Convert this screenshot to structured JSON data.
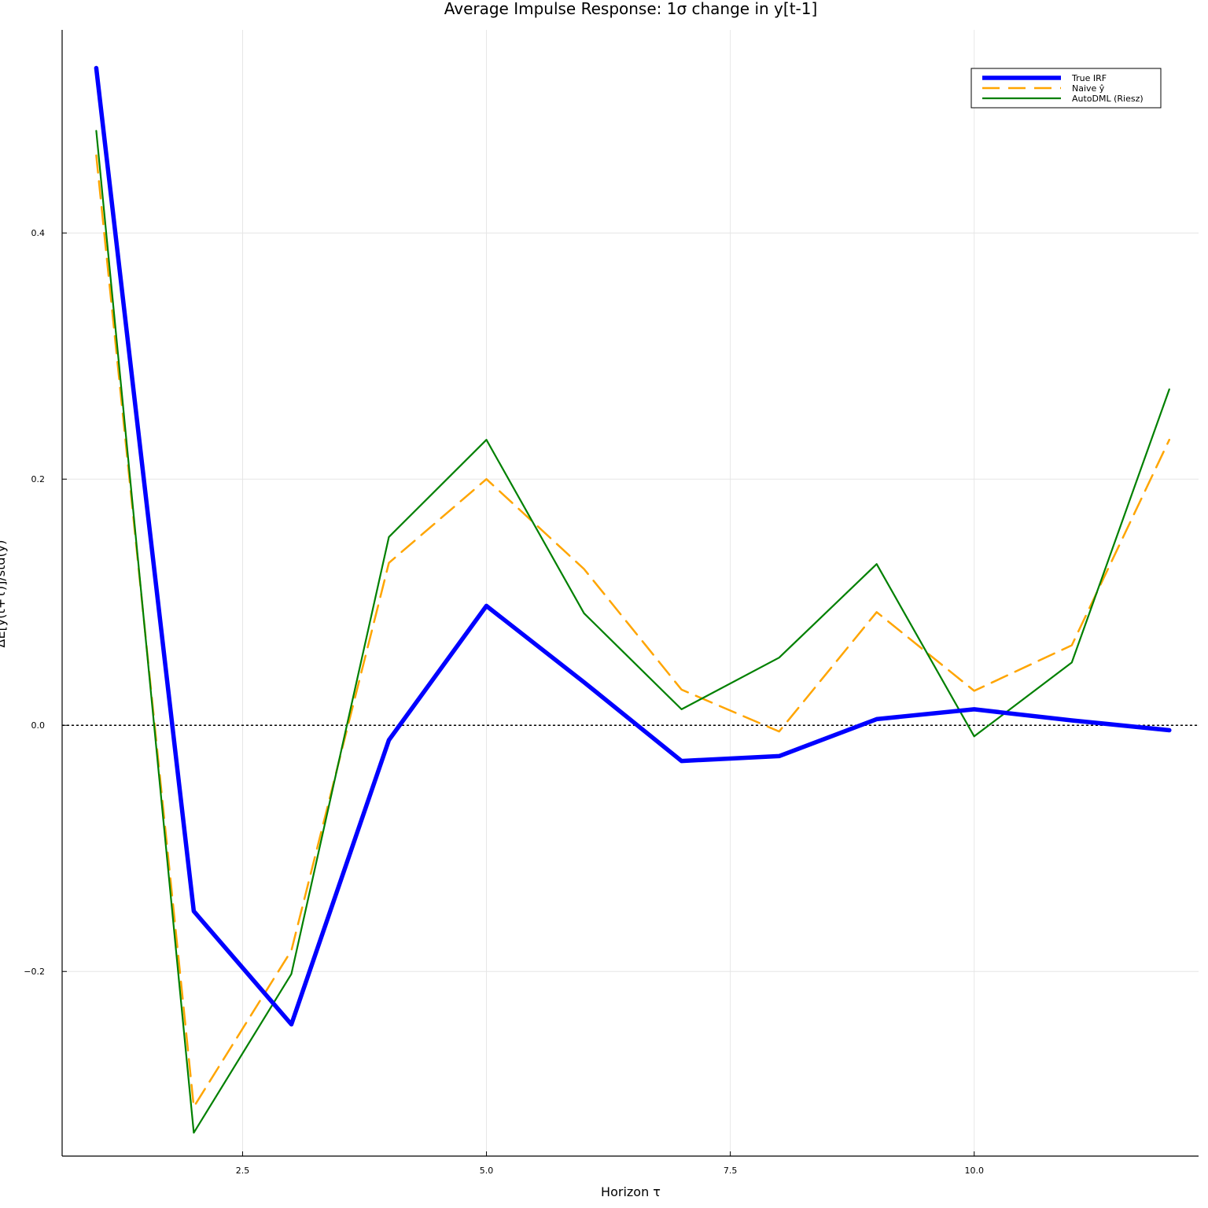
{
  "chart_data": {
    "type": "line",
    "title": "Average Impulse Response: 1σ change in y[t-1]",
    "xlabel": "Horizon τ",
    "ylabel": "ΔE[y(t+τ)]/std(y)",
    "xlim": [
      0.65,
      12.3
    ],
    "ylim": [
      -0.35,
      0.565
    ],
    "xticks": [
      2.5,
      5.0,
      7.5,
      10.0
    ],
    "xtick_labels": [
      "2.5",
      "5.0",
      "7.5",
      "10.0"
    ],
    "yticks": [
      -0.2,
      0.0,
      0.2,
      0.4
    ],
    "ytick_labels": [
      "−0.2",
      "0.0",
      "0.2",
      "0.4"
    ],
    "grid": true,
    "legend_position": "top-right",
    "reference_line": {
      "y": 0,
      "style": "dotted",
      "color": "#000000"
    },
    "x": [
      1,
      2,
      3,
      4,
      5,
      6,
      7,
      8,
      9,
      10,
      11,
      12
    ],
    "series": [
      {
        "name": "True IRF",
        "color": "#0000ff",
        "style": "solid-thick",
        "values": [
          0.534,
          -0.151,
          -0.243,
          -0.012,
          0.097,
          0.035,
          -0.029,
          -0.025,
          0.005,
          0.013,
          0.004,
          -0.004
        ]
      },
      {
        "name": "Naive ŷ",
        "color": "#ffa500",
        "style": "dashed",
        "values": [
          0.463,
          -0.31,
          -0.183,
          0.132,
          0.2,
          0.127,
          0.029,
          -0.005,
          0.092,
          0.028,
          0.065,
          0.232
        ]
      },
      {
        "name": "AutoDML (Riesz)",
        "color": "#008000",
        "style": "solid",
        "values": [
          0.483,
          -0.331,
          -0.202,
          0.153,
          0.232,
          0.091,
          0.013,
          0.055,
          0.131,
          -0.009,
          0.051,
          0.273
        ]
      }
    ]
  }
}
